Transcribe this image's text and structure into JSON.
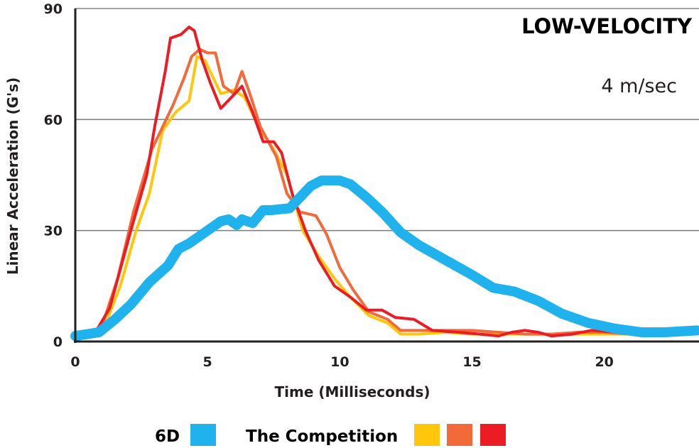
{
  "chart_data": {
    "type": "line",
    "title": "LOW-VELOCITY",
    "subtitle": "4 m/sec",
    "xlabel": "Time (Milliseconds)",
    "ylabel": "Linear Acceleration (G's)",
    "xlim": [
      0,
      23.5
    ],
    "ylim": [
      0,
      90
    ],
    "xticks": [
      0,
      5,
      10,
      15,
      20
    ],
    "yticks": [
      0,
      30,
      60,
      90
    ],
    "legend": {
      "label_6d": "6D",
      "label_competition": "The Competition"
    },
    "series": [
      {
        "name": "6D",
        "color": "#1fb2ec",
        "x": [
          0,
          0.9,
          1.5,
          2.1,
          2.8,
          3.5,
          3.9,
          4.3,
          4.9,
          5.5,
          5.8,
          6.1,
          6.3,
          6.7,
          7.1,
          7.4,
          8.1,
          8.5,
          8.9,
          9.3,
          10.0,
          10.4,
          11.0,
          11.6,
          12.3,
          13.0,
          14.0,
          15.0,
          15.8,
          16.6,
          17.5,
          18.4,
          19.4,
          20.4,
          21.4,
          22.3,
          23.5
        ],
        "values": [
          1.5,
          2.5,
          6,
          10,
          16,
          20.5,
          25,
          26.5,
          29.5,
          32.5,
          33,
          31.5,
          33,
          32,
          35.5,
          35.5,
          36,
          39,
          42,
          43.5,
          43.5,
          42.5,
          39,
          35,
          29.5,
          26,
          22,
          18,
          14.5,
          13.5,
          11,
          7.5,
          5,
          3.5,
          2.5,
          2.5,
          3
        ]
      },
      {
        "name": "Competition 1",
        "color": "#ffc60b",
        "x": [
          0,
          1.1,
          1.7,
          2.3,
          2.8,
          3.3,
          3.8,
          4.3,
          4.6,
          4.9,
          5.5,
          6.0,
          6.4,
          7.0,
          7.5,
          8.0,
          8.6,
          9.2,
          9.8,
          10.4,
          11.1,
          11.8,
          12.3,
          13.0,
          14.0,
          15.0,
          16.0,
          17.5,
          19.0,
          20.5,
          21.5,
          23.5
        ],
        "values": [
          1,
          4,
          15,
          30,
          40,
          57,
          62,
          65,
          77,
          76,
          67,
          68,
          66,
          57,
          52,
          45,
          30,
          23,
          17,
          12,
          7,
          5,
          2,
          2,
          2.5,
          2,
          2,
          2,
          2,
          2,
          2,
          2.5
        ]
      },
      {
        "name": "Competition 2",
        "color": "#f26a3a",
        "x": [
          0,
          1.0,
          1.6,
          2.2,
          2.9,
          3.3,
          3.7,
          4.1,
          4.4,
          4.7,
          5.0,
          5.3,
          5.6,
          6.0,
          6.3,
          6.6,
          7.0,
          7.6,
          8.0,
          8.5,
          9.1,
          9.5,
          10.0,
          10.5,
          11.1,
          11.8,
          12.3,
          13.0,
          14.0,
          15.0,
          16.0,
          17.0,
          18.0,
          19.0,
          20.0,
          21.0,
          23.5
        ],
        "values": [
          1,
          4,
          17,
          35,
          52,
          58,
          64,
          71,
          77,
          79,
          78,
          78,
          69,
          67,
          73,
          67,
          58,
          50,
          40,
          35,
          34,
          29,
          20,
          14,
          8,
          6,
          3,
          3,
          3,
          3,
          2.5,
          2,
          2,
          2.5,
          2.5,
          2,
          2.5
        ]
      },
      {
        "name": "Competition 3",
        "color": "#ec1c24",
        "x": [
          0,
          0.8,
          1.3,
          2.1,
          2.7,
          3.0,
          3.4,
          3.6,
          4.0,
          4.3,
          4.5,
          4.8,
          5.1,
          5.5,
          5.9,
          6.3,
          6.7,
          7.1,
          7.5,
          7.8,
          8.2,
          8.7,
          9.2,
          9.8,
          10.4,
          11.0,
          11.6,
          12.1,
          12.8,
          13.5,
          14.5,
          15.3,
          16.0,
          16.5,
          17.0,
          17.5,
          18.0,
          18.8,
          19.5,
          20.5,
          21.5,
          23.5
        ],
        "values": [
          1,
          3,
          9,
          30,
          45,
          58,
          73,
          82,
          83,
          85,
          84,
          76,
          70,
          63,
          66,
          69,
          62,
          54,
          54,
          51,
          40,
          30,
          22,
          15,
          12,
          8.5,
          8.5,
          6.5,
          6,
          3,
          2.5,
          2,
          1.5,
          2.5,
          3,
          2.5,
          1.5,
          2,
          3,
          2.5,
          2,
          2.5
        ]
      }
    ]
  }
}
